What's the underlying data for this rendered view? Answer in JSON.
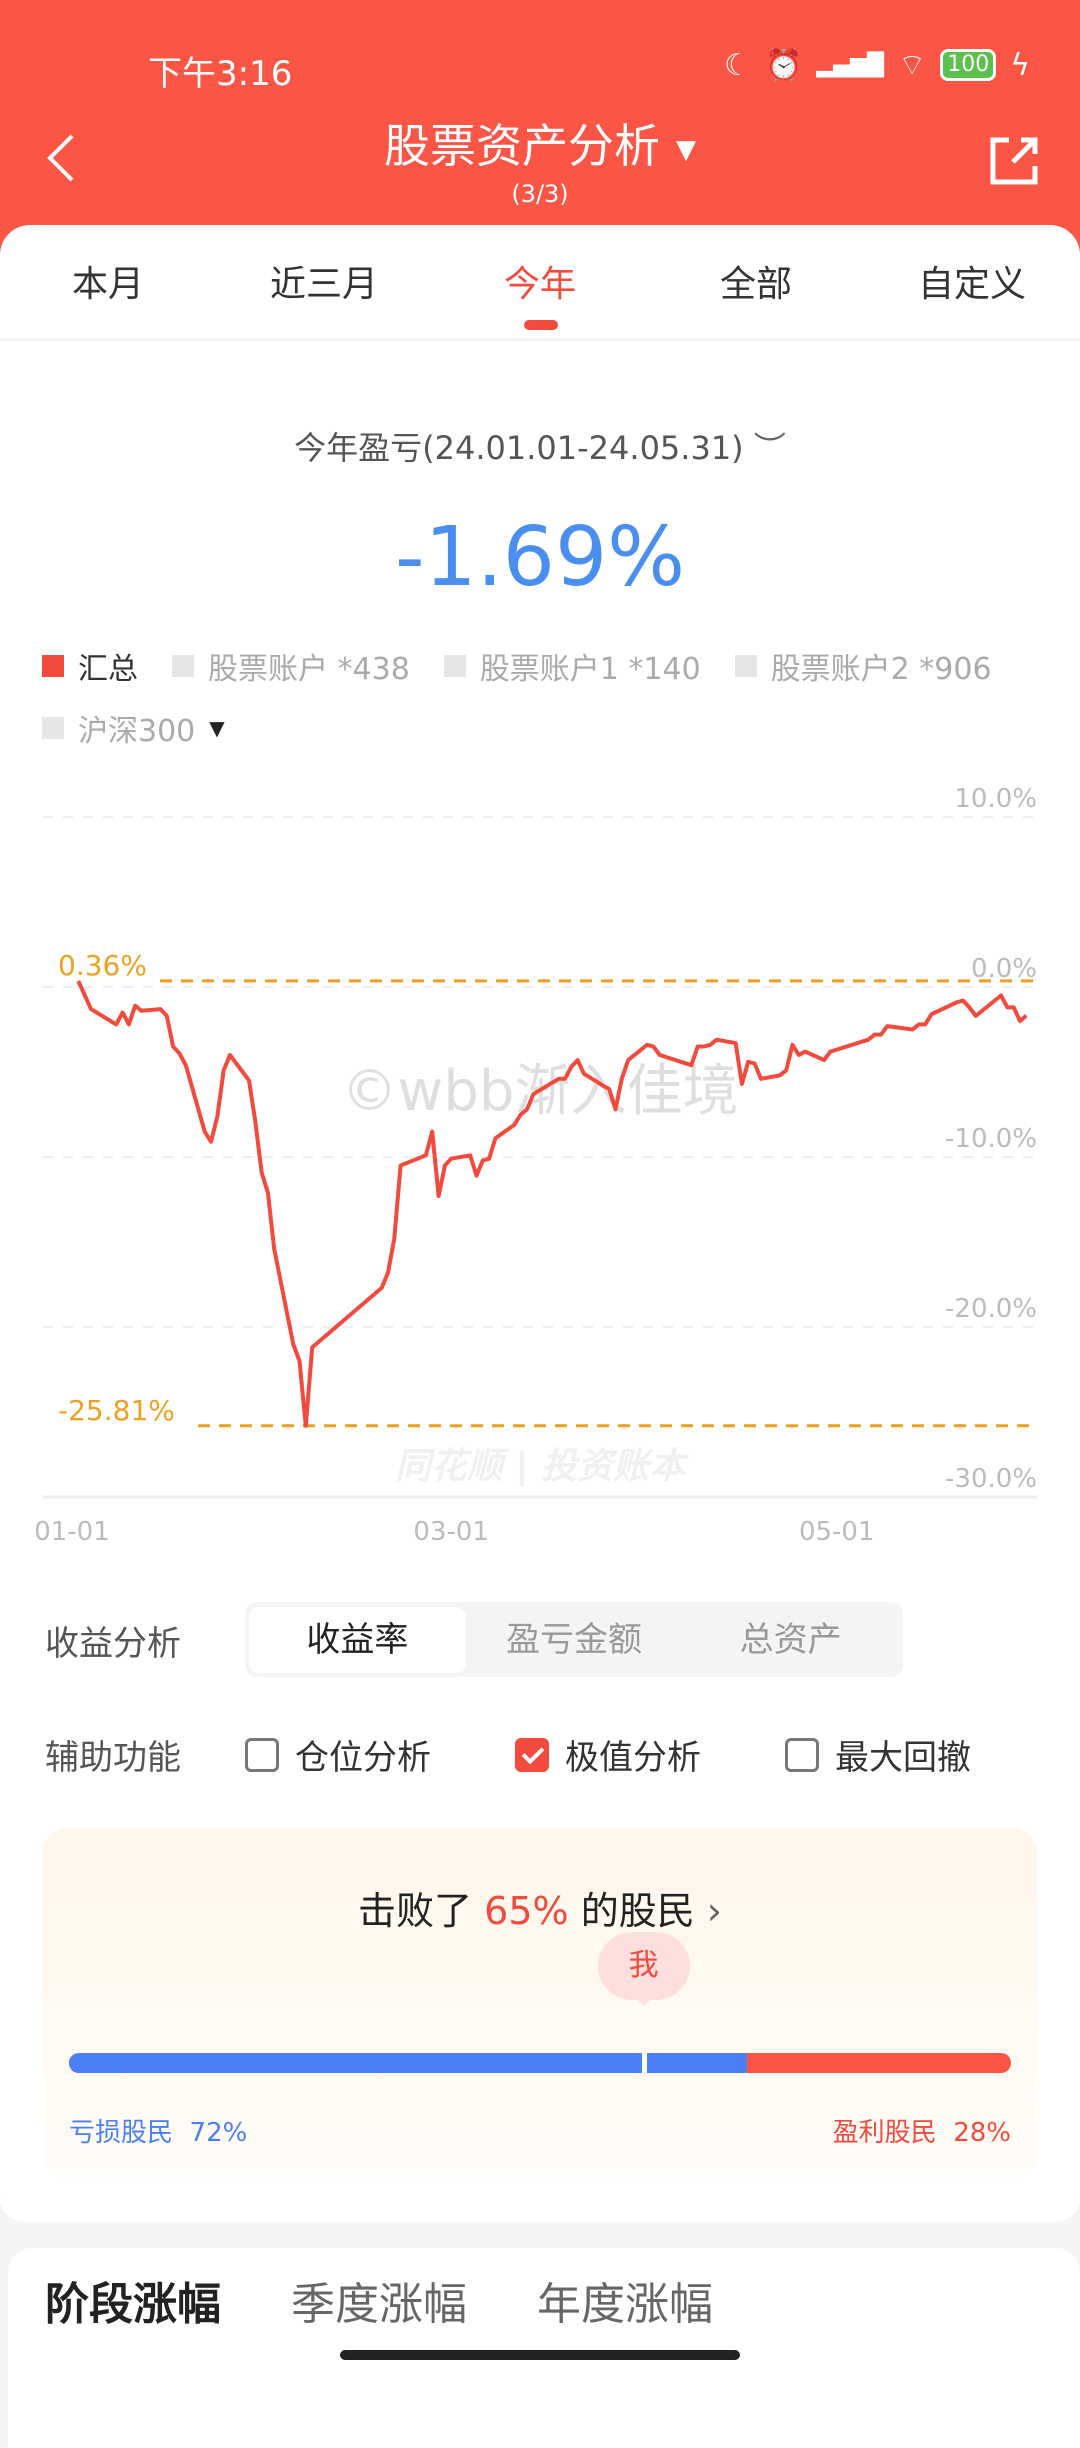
{
  "status_bar": {
    "time": "下午3:16",
    "battery": "100"
  },
  "header": {
    "title": "股票资产分析",
    "page_indicator": "(3/3)"
  },
  "tabs": [
    {
      "label": "本月"
    },
    {
      "label": "近三月"
    },
    {
      "label": "今年",
      "active": true
    },
    {
      "label": "全部"
    },
    {
      "label": "自定义"
    }
  ],
  "summary": {
    "title": "今年盈亏(24.01.01-24.05.31)",
    "value": "-1.69%",
    "value_color": "#4a8ff0"
  },
  "legend": [
    {
      "label": "汇总",
      "active": true
    },
    {
      "label": "股票账户 *438"
    },
    {
      "label": "股票账户1 *140"
    },
    {
      "label": "股票账户2 *906"
    },
    {
      "label": "沪深300"
    }
  ],
  "watermarks": {
    "user": "©wbb渐入佳境",
    "brand": "同花顺 | 投资账本"
  },
  "chart_data": {
    "type": "line",
    "ylim": [
      -30,
      10
    ],
    "y_ticks": [
      "10.0%",
      "0.0%",
      "-10.0%",
      "-20.0%",
      "-30.0%"
    ],
    "y_tick_values": [
      10,
      0,
      -10,
      -20,
      -30
    ],
    "x_ticks": [
      "01-01",
      "03-01",
      "05-01"
    ],
    "year": 2024,
    "grid": true,
    "line_color": "#f24a3c",
    "annotations": [
      {
        "label": "0.36%",
        "value": 0.36
      },
      {
        "label": "-25.81%",
        "value": -25.81
      }
    ],
    "annotation_color": "#f0a020",
    "series": [
      {
        "points": [
          [
            "01-02",
            0.36
          ],
          [
            "01-04",
            -1.3
          ],
          [
            "01-08",
            -2.2
          ],
          [
            "01-09",
            -1.5
          ],
          [
            "01-10",
            -2.2
          ],
          [
            "01-11",
            -1.1
          ],
          [
            "01-12",
            -1.4
          ],
          [
            "01-15",
            -1.3
          ],
          [
            "01-16",
            -1.7
          ],
          [
            "01-17",
            -3.5
          ],
          [
            "01-18",
            -3.9
          ],
          [
            "01-19",
            -4.6
          ],
          [
            "01-22",
            -8.5
          ],
          [
            "01-23",
            -9.1
          ],
          [
            "01-24",
            -7.6
          ],
          [
            "01-25",
            -4.9
          ],
          [
            "01-26",
            -4.0
          ],
          [
            "01-29",
            -5.5
          ],
          [
            "01-30",
            -7.9
          ],
          [
            "01-31",
            -10.9
          ],
          [
            "02-01",
            -12.1
          ],
          [
            "02-02",
            -15.4
          ],
          [
            "02-05",
            -21.0
          ],
          [
            "02-06",
            -22.0
          ],
          [
            "02-07",
            -25.81
          ],
          [
            "02-08",
            -21.2
          ],
          [
            "02-19",
            -17.7
          ],
          [
            "02-20",
            -16.8
          ],
          [
            "02-21",
            -14.8
          ],
          [
            "02-22",
            -10.5
          ],
          [
            "02-26",
            -9.9
          ],
          [
            "02-27",
            -8.5
          ],
          [
            "02-28",
            -12.3
          ],
          [
            "02-29",
            -10.5
          ],
          [
            "03-01",
            -10.1
          ],
          [
            "03-04",
            -9.9
          ],
          [
            "03-05",
            -11.1
          ],
          [
            "03-06",
            -10.2
          ],
          [
            "03-07",
            -10.1
          ],
          [
            "03-08",
            -8.9
          ],
          [
            "03-11",
            -8.1
          ],
          [
            "03-12",
            -7.5
          ],
          [
            "03-13",
            -7.2
          ],
          [
            "03-14",
            -6.3
          ],
          [
            "03-18",
            -5.4
          ],
          [
            "03-19",
            -5.4
          ],
          [
            "03-20",
            -4.7
          ],
          [
            "03-21",
            -4.3
          ],
          [
            "03-22",
            -5.1
          ],
          [
            "03-25",
            -5.8
          ],
          [
            "03-26",
            -6.0
          ],
          [
            "03-27",
            -7.2
          ],
          [
            "03-28",
            -5.4
          ],
          [
            "03-29",
            -4.3
          ],
          [
            "04-01",
            -3.4
          ],
          [
            "04-02",
            -3.5
          ],
          [
            "04-03",
            -4.0
          ],
          [
            "04-08",
            -4.6
          ],
          [
            "04-09",
            -3.5
          ],
          [
            "04-10",
            -3.5
          ],
          [
            "04-11",
            -3.4
          ],
          [
            "04-12",
            -3.1
          ],
          [
            "04-15",
            -3.3
          ],
          [
            "04-16",
            -5.7
          ],
          [
            "04-17",
            -4.4
          ],
          [
            "04-18",
            -4.5
          ],
          [
            "04-19",
            -5.4
          ],
          [
            "04-22",
            -5.2
          ],
          [
            "04-23",
            -4.9
          ],
          [
            "04-24",
            -3.4
          ],
          [
            "04-25",
            -4.0
          ],
          [
            "04-26",
            -3.8
          ],
          [
            "04-29",
            -4.3
          ],
          [
            "04-30",
            -3.8
          ],
          [
            "05-06",
            -3.1
          ],
          [
            "05-07",
            -2.8
          ],
          [
            "05-08",
            -2.8
          ],
          [
            "05-09",
            -2.3
          ],
          [
            "05-13",
            -2.5
          ],
          [
            "05-14",
            -2.2
          ],
          [
            "05-15",
            -2.2
          ],
          [
            "05-16",
            -1.6
          ],
          [
            "05-20",
            -0.9
          ],
          [
            "05-21",
            -0.8
          ],
          [
            "05-22",
            -1.2
          ],
          [
            "05-23",
            -1.7
          ],
          [
            "05-27",
            -0.5
          ],
          [
            "05-28",
            -1.2
          ],
          [
            "05-29",
            -1.2
          ],
          [
            "05-30",
            -2.0
          ],
          [
            "05-31",
            -1.69
          ]
        ]
      }
    ]
  },
  "analysis": {
    "label": "收益分析",
    "options": [
      {
        "label": "收益率",
        "active": true
      },
      {
        "label": "盈亏金额"
      },
      {
        "label": "总资产"
      }
    ]
  },
  "aux": {
    "label": "辅助功能",
    "options": [
      {
        "label": "仓位分析",
        "checked": false
      },
      {
        "label": "极值分析",
        "checked": true
      },
      {
        "label": "最大回撤",
        "checked": false
      }
    ]
  },
  "ranking": {
    "prefix": "击败了",
    "percent": "65%",
    "suffix": "的股民",
    "marker": "我",
    "marker_position": 0.65,
    "loss_label": "亏损股民",
    "loss_pct": "72%",
    "loss_fraction": 0.72,
    "profit_label": "盈利股民",
    "profit_pct": "28%"
  },
  "bottom_tabs": [
    {
      "label": "阶段涨幅",
      "active": true
    },
    {
      "label": "季度涨幅"
    },
    {
      "label": "年度涨幅"
    }
  ]
}
